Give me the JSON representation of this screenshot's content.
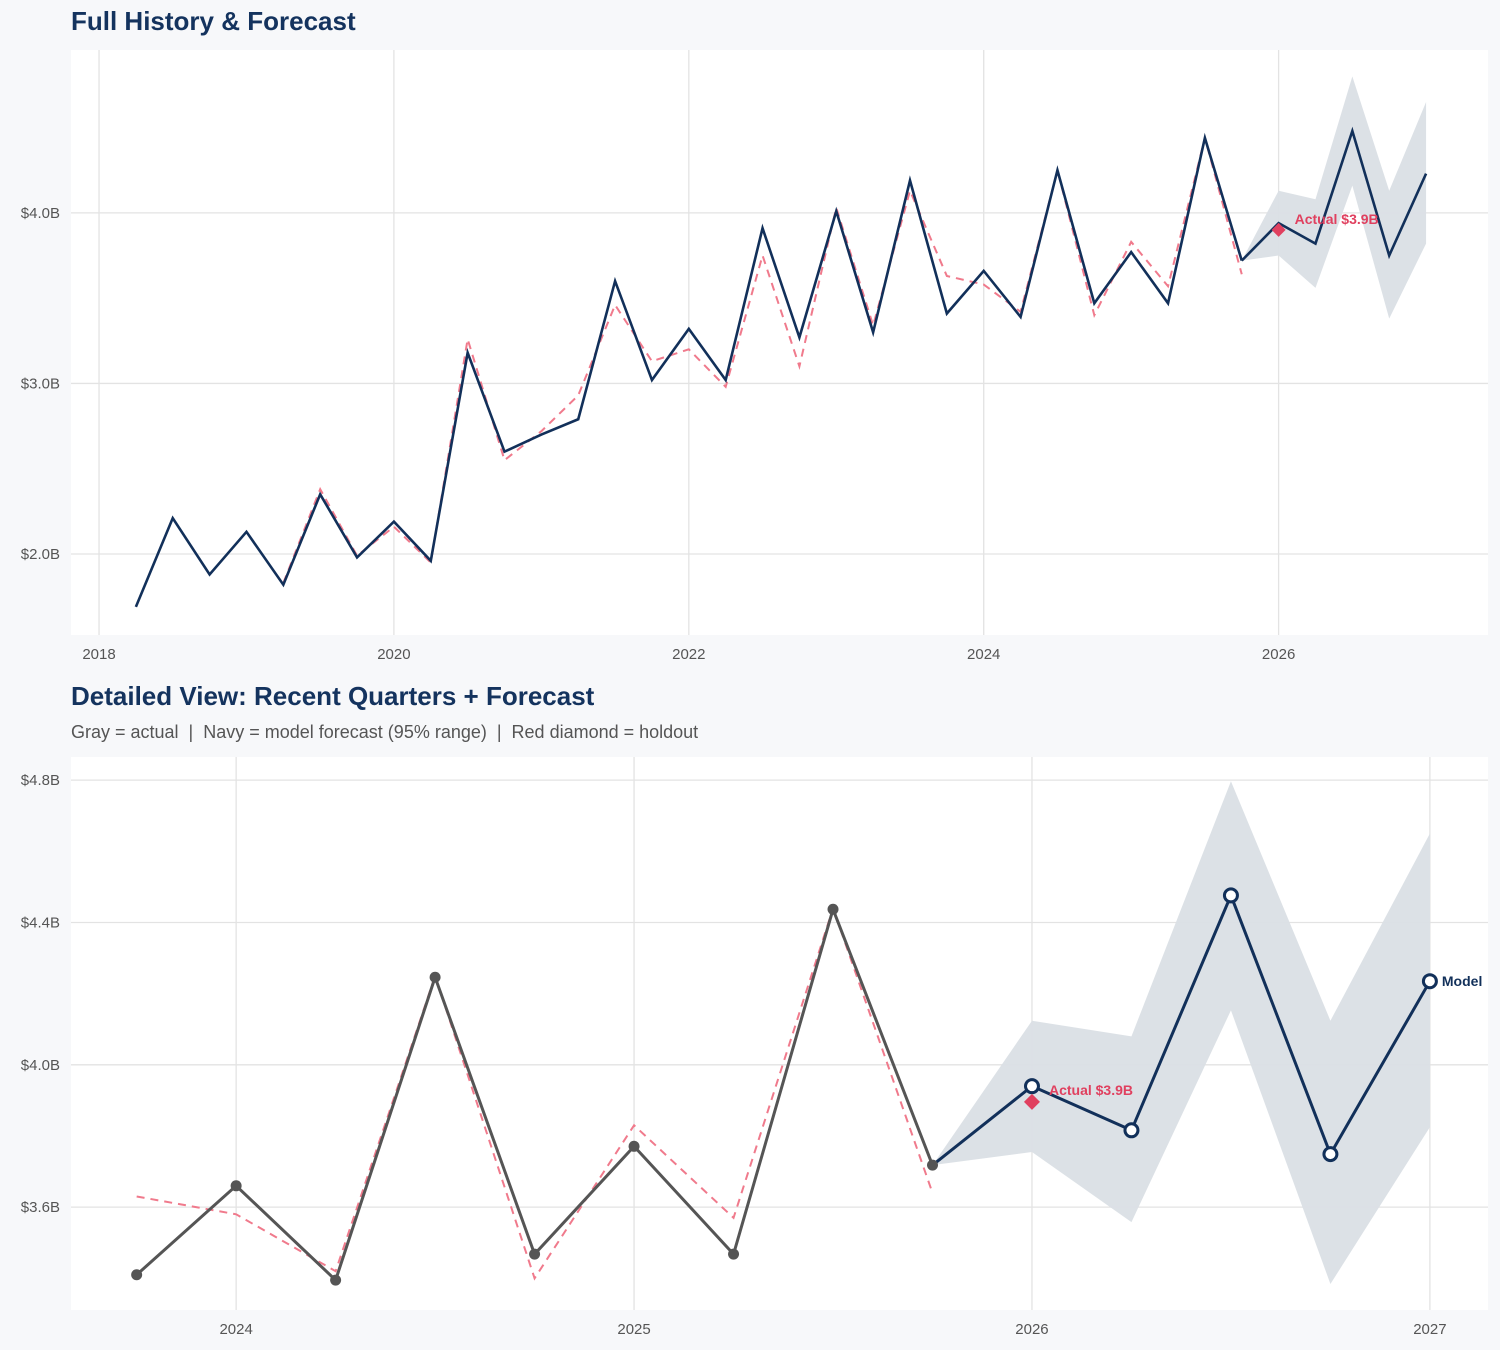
{
  "chart_data": [
    {
      "type": "line",
      "title": "Full History & Forecast",
      "xlim": [
        2017.81,
        2027.42
      ],
      "ylim": [
        1.525,
        4.955
      ],
      "x_ticks": [
        2018,
        2020,
        2022,
        2024,
        2026
      ],
      "x_tick_labels": [
        "2018",
        "2020",
        "2022",
        "2024",
        "2026"
      ],
      "y_ticks": [
        2.0,
        3.0,
        4.0
      ],
      "y_tick_labels": [
        "$2.0B",
        "$3.0B",
        "$4.0B"
      ],
      "grid": true,
      "colors": {
        "actual": "#12305a",
        "fitted": "#f07a8c",
        "forecast": "#12305a",
        "band": "#dadfe5",
        "holdout": "#e0405f"
      },
      "actual": {
        "x": [
          2018.25,
          2018.5,
          2018.75,
          2019,
          2019.25,
          2019.5,
          2019.75,
          2020,
          2020.25,
          2020.5,
          2020.75,
          2021,
          2021.25,
          2021.5,
          2021.75,
          2022,
          2022.25,
          2022.5,
          2022.75,
          2023,
          2023.25,
          2023.5,
          2023.75,
          2024,
          2024.25,
          2024.5,
          2024.75,
          2025,
          2025.25,
          2025.5,
          2025.75
        ],
        "y": [
          1.69,
          2.21,
          1.88,
          2.13,
          1.82,
          2.35,
          1.98,
          2.19,
          1.96,
          3.18,
          2.6,
          2.7,
          2.79,
          3.6,
          3.02,
          3.32,
          3.02,
          3.91,
          3.27,
          4.01,
          3.3,
          4.19,
          3.41,
          3.66,
          3.39,
          4.25,
          3.47,
          3.77,
          3.47,
          4.44,
          3.72
        ]
      },
      "fitted": {
        "x": [
          2019.25,
          2019.5,
          2019.75,
          2020,
          2020.25,
          2020.5,
          2020.75,
          2021,
          2021.25,
          2021.5,
          2021.75,
          2022,
          2022.25,
          2022.5,
          2022.75,
          2023,
          2023.25,
          2023.5,
          2023.75,
          2024,
          2024.25,
          2024.5,
          2024.75,
          2025,
          2025.25,
          2025.5,
          2025.75
        ],
        "y": [
          1.83,
          2.38,
          1.99,
          2.16,
          1.95,
          3.26,
          2.55,
          2.72,
          2.93,
          3.46,
          3.13,
          3.2,
          2.98,
          3.75,
          3.1,
          4.03,
          3.34,
          4.13,
          3.63,
          3.58,
          3.42,
          4.25,
          3.4,
          3.83,
          3.57,
          4.44,
          3.64
        ]
      },
      "forecast": {
        "x": [
          2025.75,
          2026,
          2026.25,
          2026.5,
          2026.75,
          2027
        ],
        "y": [
          3.72,
          3.94,
          3.82,
          4.48,
          3.75,
          4.23
        ],
        "lower": [
          3.72,
          3.75,
          3.56,
          4.16,
          3.38,
          3.82
        ],
        "upper": [
          3.72,
          4.13,
          4.08,
          4.8,
          4.13,
          4.65
        ]
      },
      "holdout": {
        "x": 2026,
        "y": 3.9,
        "label": "Actual $3.9B"
      }
    },
    {
      "type": "line",
      "title": "Detailed View: Recent Quarters + Forecast",
      "subtitle": "Gray = actual  |  Navy = model forecast (95% range)  |  Red diamond = holdout",
      "xlim": [
        2023.585,
        2027.146
      ],
      "ylim": [
        3.311,
        4.865
      ],
      "x_ticks": [
        2024,
        2025,
        2026,
        2027
      ],
      "x_tick_labels": [
        "2024",
        "2025",
        "2026",
        "2027"
      ],
      "y_ticks": [
        3.6,
        4.0,
        4.4,
        4.8
      ],
      "y_tick_labels": [
        "$3.6B",
        "$4.0B",
        "$4.4B",
        "$4.8B"
      ],
      "grid": true,
      "colors": {
        "actual": "#555555",
        "fitted": "#f07a8c",
        "forecast": "#12305a",
        "band": "#dadfe5",
        "holdout": "#e0405f"
      },
      "actual": {
        "x": [
          2023.75,
          2024,
          2024.25,
          2024.5,
          2024.75,
          2025,
          2025.25,
          2025.5,
          2025.75
        ],
        "y": [
          3.41,
          3.66,
          3.395,
          4.246,
          3.468,
          3.771,
          3.468,
          4.437,
          3.718
        ]
      },
      "fitted": {
        "x": [
          2023.75,
          2024,
          2024.25,
          2024.5,
          2024.75,
          2025,
          2025.25,
          2025.5,
          2025.75
        ],
        "y": [
          3.63,
          3.58,
          3.42,
          4.25,
          3.4,
          3.83,
          3.57,
          4.44,
          3.64
        ]
      },
      "forecast": {
        "x": [
          2025.75,
          2026,
          2026.25,
          2026.5,
          2026.75,
          2027
        ],
        "y": [
          3.718,
          3.94,
          3.816,
          4.476,
          3.749,
          4.235
        ],
        "lower": [
          3.718,
          3.755,
          3.558,
          4.153,
          3.384,
          3.825
        ],
        "upper": [
          3.718,
          4.124,
          4.08,
          4.797,
          4.124,
          4.65
        ],
        "end_label": "Model"
      },
      "holdout": {
        "x": 2026,
        "y": 3.896,
        "label": "Actual $3.9B"
      }
    }
  ]
}
